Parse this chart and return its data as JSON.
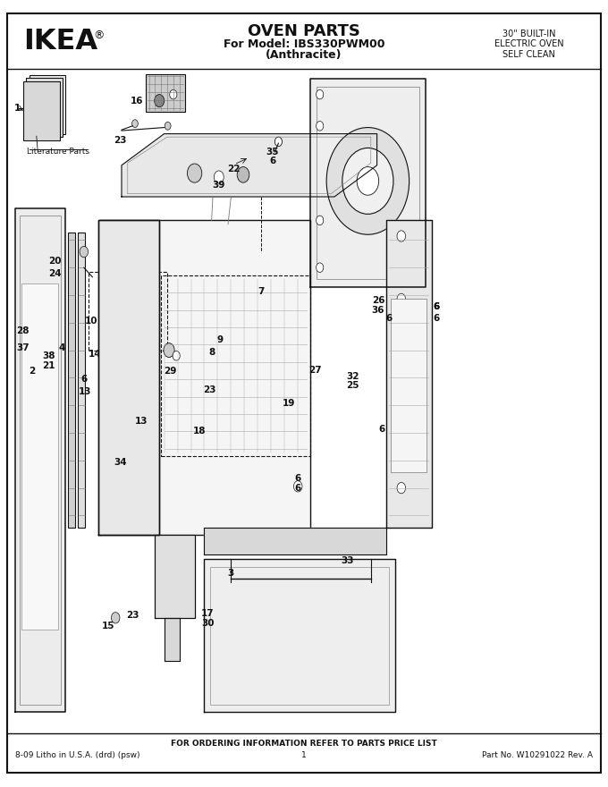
{
  "title": "OVEN PARTS",
  "subtitle1": "For Model: IBS330PWM00",
  "subtitle2": "(Anthracite)",
  "brand": "IKEA",
  "top_right_line1": "30\" BUILT-IN",
  "top_right_line2": "ELECTRIC OVEN",
  "top_right_line3": "SELF CLEAN",
  "footer_center": "FOR ORDERING INFORMATION REFER TO PARTS PRICE LIST",
  "footer_left": "8-09 Litho in U.S.A. (drd) (psw)",
  "footer_page": "1",
  "footer_right": "Part No. W10291022 Rev. A",
  "bg_color": "#ffffff",
  "text_color": "#000000",
  "fig_width": 6.8,
  "fig_height": 8.8,
  "dpi": 100
}
